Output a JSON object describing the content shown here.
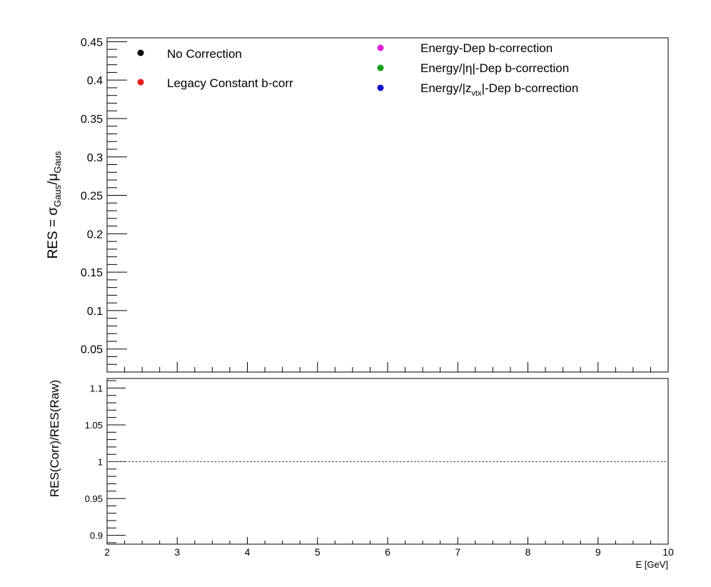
{
  "chart_data": [
    {
      "type": "scatter",
      "panel": "top",
      "ylabel": "RES = σGaus/μGaus",
      "ylabel_parts": {
        "main": "RES = σ",
        "sub1": "Gaus",
        "slash": "/μ",
        "sub2": "Gaus"
      },
      "xlim": [
        2,
        10
      ],
      "ylim": [
        0.02,
        0.455
      ],
      "y_tick_labels": [
        "0.05",
        "0.1",
        "0.15",
        "0.2",
        "0.25",
        "0.3",
        "0.35",
        "0.4",
        "0.45"
      ],
      "y_ticks": [
        0.05,
        0.1,
        0.15,
        0.2,
        0.25,
        0.3,
        0.35,
        0.4,
        0.45
      ],
      "grid": false,
      "series": [
        {
          "name": "No Correction",
          "color": "#000000",
          "x": [],
          "y": []
        },
        {
          "name": "Legacy Constant b-corr",
          "color": "#e41a1c",
          "x": [],
          "y": []
        },
        {
          "name": "Energy-Dep b-correction",
          "color": "#e020e0",
          "x": [],
          "y": []
        },
        {
          "name": "Energy/|η|-Dep b-correction",
          "color": "#10a010",
          "x": [],
          "y": []
        },
        {
          "name": "Energy/|zvtx|-Dep b-correction",
          "color": "#1010d0",
          "x": [],
          "y": []
        }
      ],
      "legend": {
        "left": [
          {
            "label": "No Correction",
            "color": "#000000"
          },
          {
            "label": "Legacy Constant b-corr",
            "color": "#e41a1c"
          }
        ],
        "right": [
          {
            "label": "Energy-Dep b-correction",
            "color": "#e020e0"
          },
          {
            "label": "Energy/|η|-Dep b-correction",
            "color": "#10a010"
          },
          {
            "label": "Energy/|z",
            "sub": "vtx",
            "after": "|-Dep b-correction",
            "color": "#1010d0"
          }
        ]
      }
    },
    {
      "type": "scatter",
      "panel": "bottom",
      "ylabel": "RES(Corr)/RES(Raw)",
      "xlabel": "E  [GeV]",
      "xlim": [
        2,
        10
      ],
      "ylim": [
        0.888,
        1.113
      ],
      "x_tick_labels": [
        "2",
        "3",
        "4",
        "5",
        "6",
        "7",
        "8",
        "9",
        "10"
      ],
      "x_ticks": [
        2,
        3,
        4,
        5,
        6,
        7,
        8,
        9,
        10
      ],
      "y_tick_labels": [
        "0.9",
        "0.95",
        "1",
        "1.05",
        "1.1"
      ],
      "y_ticks": [
        0.9,
        0.95,
        1,
        1.05,
        1.1
      ],
      "reference_line": 1,
      "grid": false,
      "series": []
    }
  ]
}
